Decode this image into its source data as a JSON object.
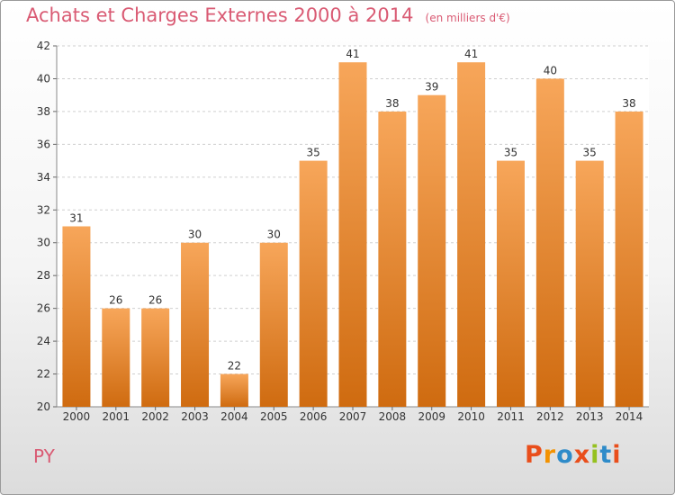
{
  "title": "Achats et Charges Externes 2000 à 2014",
  "unit_label": "(en milliers d'€)",
  "place": "PY",
  "logo_text": "Proxiti",
  "colors": {
    "bar_light": "#f7a65a",
    "bar_dark": "#cf6b10",
    "title": "#d95a73",
    "grid": "#cfcfcf",
    "logo": [
      "#e94e1b",
      "#f39200",
      "#2e8bc9",
      "#e94e1b",
      "#95c11f",
      "#2e8bc9",
      "#e94e1b"
    ]
  },
  "chart_data": {
    "type": "bar",
    "categories": [
      "2000",
      "2001",
      "2002",
      "2003",
      "2004",
      "2005",
      "2006",
      "2007",
      "2008",
      "2009",
      "2010",
      "2011",
      "2012",
      "2013",
      "2014"
    ],
    "values": [
      31,
      26,
      26,
      30,
      22,
      30,
      35,
      41,
      38,
      39,
      41,
      35,
      40,
      35,
      38
    ],
    "ylim": [
      20,
      42
    ],
    "yticks": [
      20,
      22,
      24,
      26,
      28,
      30,
      32,
      34,
      36,
      38,
      40,
      42
    ],
    "grid": true,
    "data_labels": true
  }
}
